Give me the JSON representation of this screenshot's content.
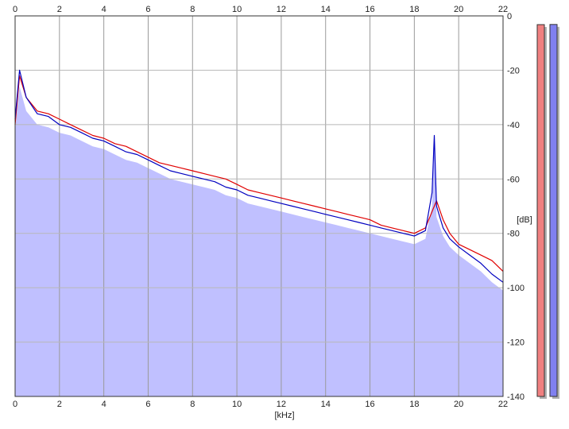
{
  "chart_data": {
    "type": "area",
    "title": "",
    "xlabel": "[kHz]",
    "ylabel": "[dB]",
    "xlim": [
      0,
      22
    ],
    "ylim": [
      -140,
      0
    ],
    "x_ticks": [
      "0",
      "2",
      "4",
      "6",
      "8",
      "10",
      "12",
      "14",
      "16",
      "18",
      "20",
      "22"
    ],
    "y_ticks": [
      "0",
      "-20",
      "-40",
      "-60",
      "-80",
      "-100",
      "-120",
      "-140"
    ],
    "grid": true,
    "legend": "none",
    "series": [
      {
        "channel": "left",
        "color": "#e00000",
        "x": [
          0,
          0.2,
          0.5,
          1,
          1.5,
          2,
          2.5,
          3,
          3.5,
          4,
          4.5,
          5,
          5.5,
          6,
          6.5,
          7,
          7.5,
          8,
          8.5,
          9,
          9.5,
          10,
          10.5,
          11,
          11.5,
          12,
          12.5,
          13,
          13.5,
          14,
          14.5,
          15,
          15.5,
          16,
          16.5,
          17,
          17.5,
          18,
          18.5,
          18.8,
          19,
          19.3,
          19.6,
          20,
          20.5,
          21,
          21.5,
          22
        ],
        "values": [
          -40,
          -22,
          -30,
          -35,
          -36,
          -38,
          -40,
          -42,
          -44,
          -45,
          -47,
          -48,
          -50,
          -52,
          -54,
          -55,
          -56,
          -57,
          -58,
          -59,
          -60,
          -62,
          -64,
          -65,
          -66,
          -67,
          -68,
          -69,
          -70,
          -71,
          -72,
          -73,
          -74,
          -75,
          -77,
          -78,
          -79,
          -80,
          -78,
          -72,
          -68,
          -75,
          -80,
          -84,
          -86,
          -88,
          -90,
          -94
        ]
      },
      {
        "channel": "right",
        "color": "#0000c0",
        "x": [
          0,
          0.2,
          0.5,
          1,
          1.5,
          2,
          2.5,
          3,
          3.5,
          4,
          4.5,
          5,
          5.5,
          6,
          6.5,
          7,
          7.5,
          8,
          8.5,
          9,
          9.5,
          10,
          10.5,
          11,
          11.5,
          12,
          12.5,
          13,
          13.5,
          14,
          14.5,
          15,
          15.5,
          16,
          16.5,
          17,
          17.5,
          18,
          18.5,
          18.8,
          18.9,
          19,
          19.3,
          19.6,
          20,
          20.5,
          21,
          21.5,
          22
        ],
        "values": [
          -38,
          -20,
          -30,
          -36,
          -37,
          -40,
          -41,
          -43,
          -45,
          -46,
          -48,
          -50,
          -51,
          -53,
          -55,
          -57,
          -58,
          -59,
          -60,
          -61,
          -63,
          -64,
          -66,
          -67,
          -68,
          -69,
          -70,
          -71,
          -72,
          -73,
          -74,
          -75,
          -76,
          -77,
          -78,
          -79,
          -80,
          -81,
          -79,
          -65,
          -44,
          -70,
          -78,
          -82,
          -85,
          -88,
          -91,
          -95,
          -98
        ]
      }
    ],
    "floor": {
      "fill_color": "#c0c0ff",
      "x": [
        0,
        0.2,
        0.5,
        1,
        1.5,
        2,
        2.5,
        3,
        3.5,
        4,
        4.5,
        5,
        5.5,
        6,
        6.5,
        7,
        7.5,
        8,
        8.5,
        9,
        9.5,
        10,
        10.5,
        11,
        11.5,
        12,
        12.5,
        13,
        13.5,
        14,
        14.5,
        15,
        15.5,
        16,
        16.5,
        17,
        17.5,
        18,
        18.5,
        18.8,
        18.9,
        19,
        19.3,
        19.6,
        20,
        20.5,
        21,
        21.5,
        22
      ],
      "values": [
        -42,
        -26,
        -35,
        -40,
        -41,
        -43,
        -44,
        -46,
        -48,
        -49,
        -51,
        -53,
        -54,
        -56,
        -58,
        -60,
        -61,
        -62,
        -63,
        -64,
        -66,
        -67,
        -69,
        -70,
        -71,
        -72,
        -73,
        -74,
        -75,
        -76,
        -77,
        -78,
        -79,
        -80,
        -81,
        -82,
        -83,
        -84,
        -82,
        -70,
        -48,
        -74,
        -81,
        -85,
        -88,
        -91,
        -94,
        -98,
        -101
      ]
    },
    "level_meters": [
      {
        "channel": "left",
        "color": "#f08080",
        "value_db": -5
      },
      {
        "channel": "right",
        "color": "#8080f0",
        "value_db": -4
      }
    ]
  }
}
